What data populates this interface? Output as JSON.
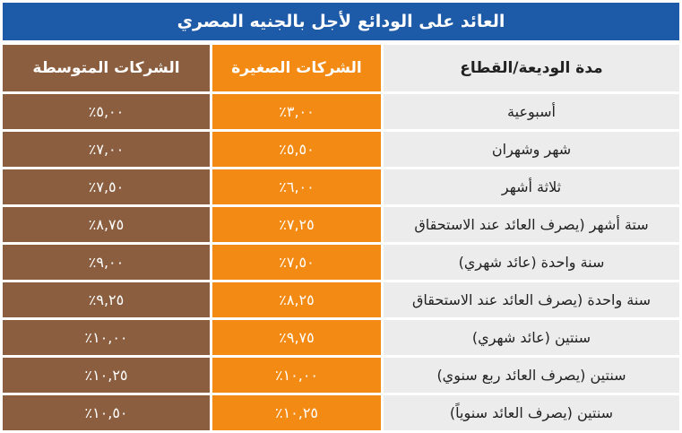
{
  "title": "العائد على الودائع لأجل بالجنيه المصري",
  "colors": {
    "title_bg": "#1d5aa8",
    "period_bg": "#ececec",
    "small_bg": "#f28a14",
    "medium_bg": "#8a5e3f"
  },
  "headers": {
    "period": "مدة الوديعة/القطاع",
    "small": "الشركات الصغيرة",
    "medium": "الشركات المتوسطة"
  },
  "rows": [
    {
      "period": "أسبوعية",
      "small": "٣,٠٠٪",
      "medium": "٥,٠٠٪"
    },
    {
      "period": "شهر وشهران",
      "small": "٥,٥٠٪",
      "medium": "٧,٠٠٪"
    },
    {
      "period": "ثلاثة أشهر",
      "small": "٦,٠٠٪",
      "medium": "٧,٥٠٪"
    },
    {
      "period": "ستة أشهر (يصرف العائد عند الاستحقاق",
      "small": "٧,٢٥٪",
      "medium": "٨,٧٥٪"
    },
    {
      "period": "سنة واحدة (عائد شهري)",
      "small": "٧,٥٠٪",
      "medium": "٩,٠٠٪"
    },
    {
      "period": "سنة واحدة (يصرف العائد عند الاستحقاق",
      "small": "٨,٢٥٪",
      "medium": "٩,٢٥٪"
    },
    {
      "period": "سنتين (عائد شهري)",
      "small": "٩,٧٥٪",
      "medium": "١٠,٠٠٪"
    },
    {
      "period": "سنتين (يصرف العائد ربع سنوي)",
      "small": "١٠,٠٠٪",
      "medium": "١٠,٢٥٪"
    },
    {
      "period": "سنتين (يصرف العائد سنوياً)",
      "small": "١٠,٢٥٪",
      "medium": "١٠,٥٠٪"
    }
  ]
}
